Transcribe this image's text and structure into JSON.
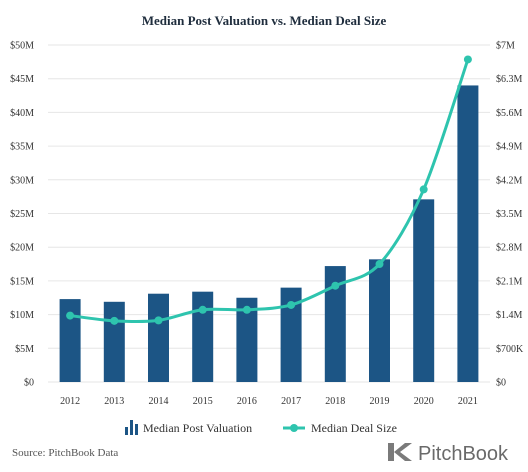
{
  "chart_data": {
    "type": "bar",
    "title": "Median Post Valuation vs. Median Deal Size",
    "categories": [
      "2012",
      "2013",
      "2014",
      "2015",
      "2016",
      "2017",
      "2018",
      "2019",
      "2020",
      "2021"
    ],
    "series": [
      {
        "name": "Median Post Valuation",
        "type": "bar",
        "axis": "left",
        "color": "#1c5585",
        "values": [
          12.3,
          11.9,
          13.1,
          13.4,
          12.5,
          14.0,
          17.2,
          18.2,
          27.1,
          44.0
        ]
      },
      {
        "name": "Median Deal Size",
        "type": "line",
        "axis": "right",
        "color": "#2ec4ae",
        "values": [
          1.38,
          1.27,
          1.28,
          1.5,
          1.5,
          1.6,
          2.0,
          2.45,
          4.0,
          6.7
        ]
      }
    ],
    "left_axis": {
      "ylim": [
        0,
        50
      ],
      "ticks": [
        "$0",
        "$5M",
        "$10M",
        "$15M",
        "$20M",
        "$25M",
        "$30M",
        "$35M",
        "$40M",
        "$45M",
        "$50M"
      ]
    },
    "right_axis": {
      "ylim": [
        0,
        7
      ],
      "ticks": [
        "$0",
        "$700K",
        "$1.4M",
        "$2.1M",
        "$2.8M",
        "$3.5M",
        "$4.2M",
        "$4.9M",
        "$5.6M",
        "$6.3M",
        "$7M"
      ]
    },
    "grid": true,
    "legend": "bottom"
  },
  "footer": {
    "source": "Source: PitchBook Data",
    "brand": "PitchBook"
  },
  "colors": {
    "bar": "#1c5585",
    "line": "#2ec4ae",
    "grid": "#e6e6e6",
    "logo": "#7a7a7a"
  }
}
